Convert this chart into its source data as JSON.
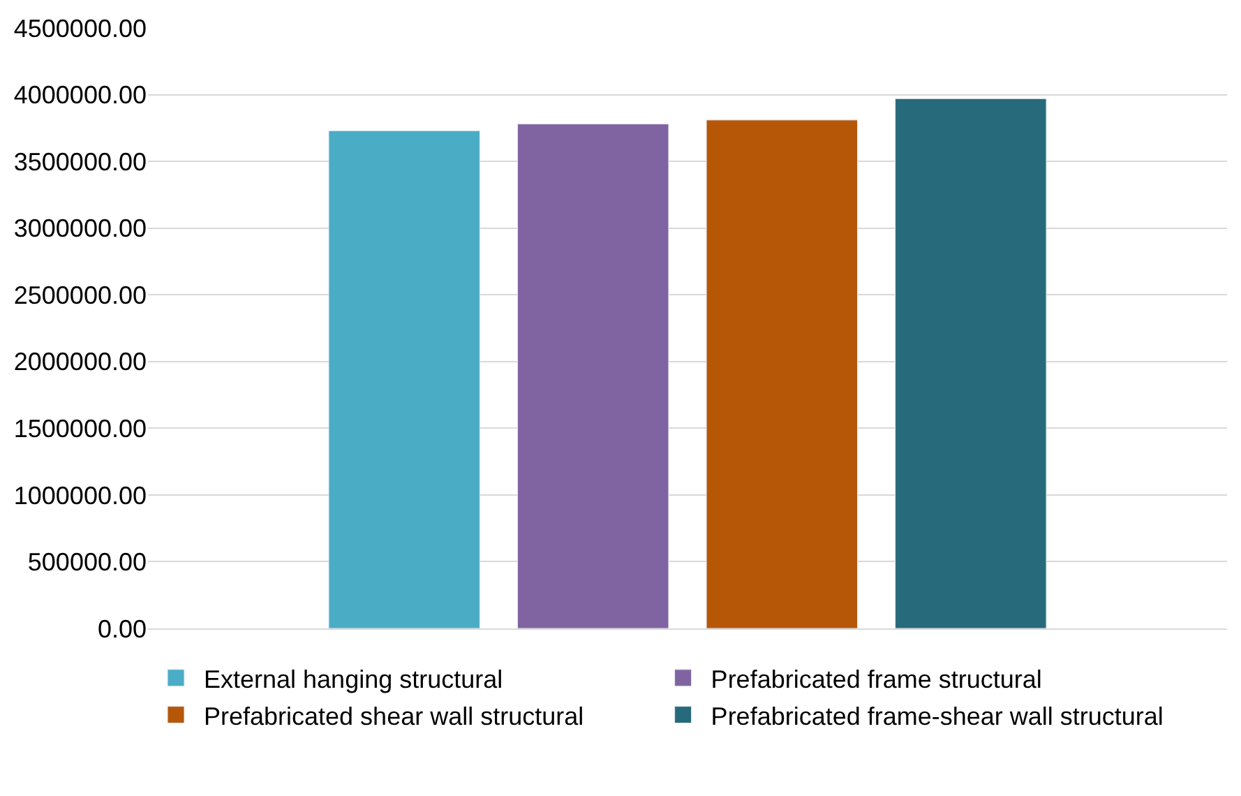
{
  "chart_data": {
    "type": "bar",
    "categories": [
      null
    ],
    "series": [
      {
        "name": "External hanging structural",
        "color": "#4bacc6",
        "values": [
          3730000
        ]
      },
      {
        "name": "Prefabricated frame structural",
        "color": "#8064a2",
        "values": [
          3780000
        ]
      },
      {
        "name": "Prefabricated shear wall structural",
        "color": "#b65708",
        "values": [
          3810000
        ]
      },
      {
        "name": "Prefabricated frame-shear wall structural",
        "color": "#276a7c",
        "values": [
          3970000
        ]
      }
    ],
    "ylim": [
      0,
      4500000
    ],
    "yticks": [
      {
        "value": 0,
        "label": "0.00"
      },
      {
        "value": 500000,
        "label": "500000.00"
      },
      {
        "value": 1000000,
        "label": "1000000.00"
      },
      {
        "value": 1500000,
        "label": "1500000.00"
      },
      {
        "value": 2000000,
        "label": "2000000.00"
      },
      {
        "value": 2500000,
        "label": "2500000.00"
      },
      {
        "value": 3000000,
        "label": "3000000.00"
      },
      {
        "value": 3500000,
        "label": "3500000.00"
      },
      {
        "value": 4000000,
        "label": "4000000.00"
      },
      {
        "value": 4500000,
        "label": "4500000.00"
      }
    ],
    "grid": "y",
    "legend": "bottom"
  }
}
